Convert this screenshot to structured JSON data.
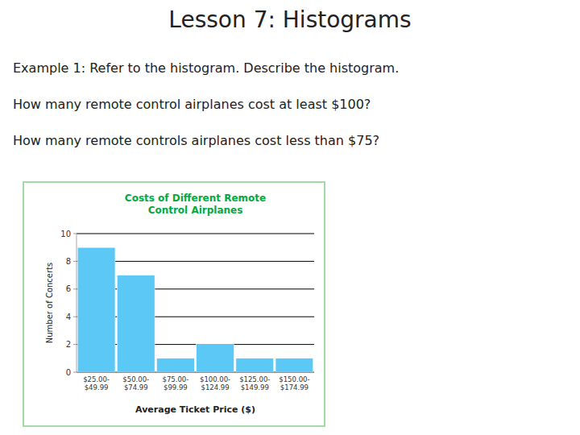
{
  "title": "Lesson 7: Histograms",
  "text": [
    "Example 1: Refer to the histogram. Describe the histogram.",
    "How many remote control airplanes cost at least $100?",
    "How many remote controls airplanes cost less than $75?"
  ],
  "chart_data": {
    "type": "bar",
    "title": "Costs of Different Remote\nControl Airplanes",
    "xlabel": "Average Ticket Price ($)",
    "ylabel": "Number of Concerts",
    "categories": [
      "$25.00-\n$49.99",
      "$50.00-\n$74.99",
      "$75.00-\n$99.99",
      "$100.00-\n$124.99",
      "$125.00-\n$149.99",
      "$150.00-\n$174.99"
    ],
    "values": [
      9,
      7,
      1,
      2,
      1,
      1
    ],
    "color": "#5bc8f5",
    "ylim": [
      0,
      10
    ],
    "yticks": [
      0,
      2,
      4,
      6,
      8,
      10
    ],
    "grid": true
  }
}
